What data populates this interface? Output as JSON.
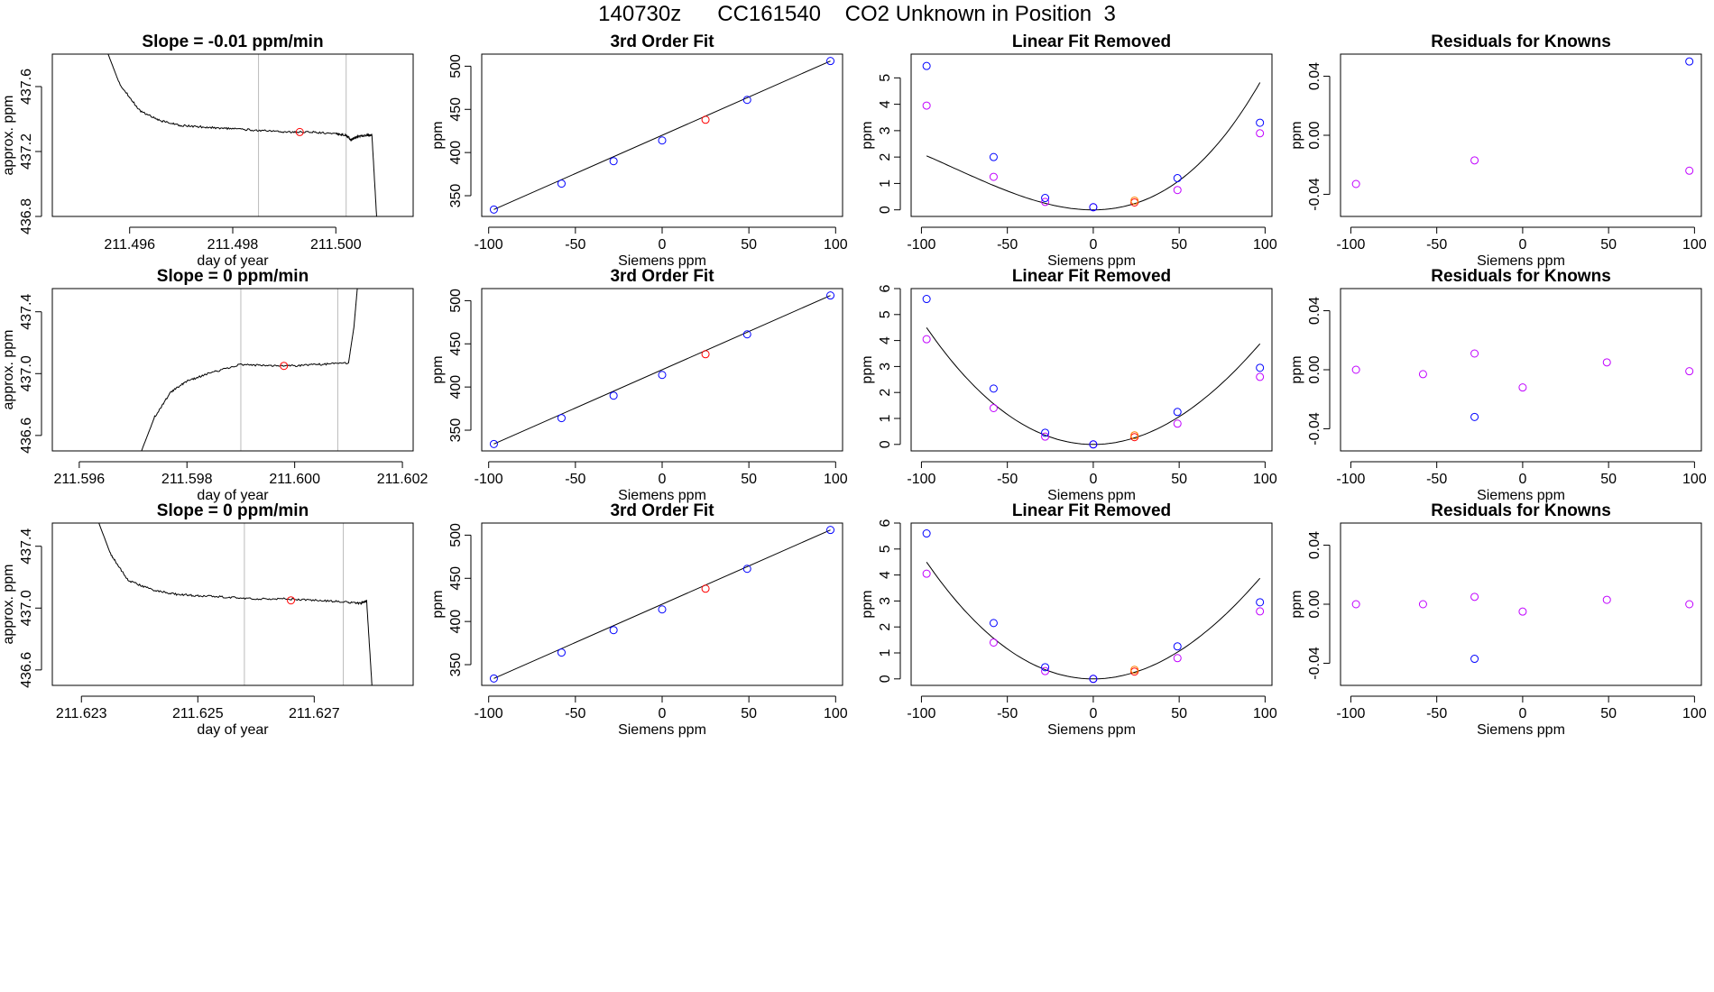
{
  "page": {
    "title": "140730z      CC161540    CO2 Unknown in Position  3"
  },
  "colors": {
    "standard": "#0000ff",
    "unknown": "#ff0000",
    "residual": "#c000ff",
    "line": "#000000",
    "vline": "#bbbbbb"
  },
  "chart_data": [
    {
      "id": "r1-trace",
      "type": "line",
      "title": "Slope =  -0.01  ppm/min",
      "xlabel": "day of year",
      "ylabel": "approx. ppm",
      "xlim": [
        211.4945,
        211.5015
      ],
      "ylim": [
        436.8,
        437.8
      ],
      "xticks": [
        211.496,
        211.498,
        211.5
      ],
      "xtick_labels": [
        "211.496",
        "211.498",
        "211.500"
      ],
      "yticks": [
        436.8,
        437.2,
        437.6
      ],
      "ytick_labels": [
        "436.8",
        "437.2",
        "437.6"
      ],
      "vlines": [
        211.4985,
        211.5002
      ],
      "series": [
        {
          "x": [
            211.4954,
            211.4958,
            211.4962,
            211.4966,
            211.497,
            211.4975,
            211.498,
            211.4985,
            211.499,
            211.4995,
            211.5,
            211.5002,
            211.5003,
            211.5004,
            211.5006,
            211.5007,
            211.5008
          ],
          "y": [
            437.95,
            437.62,
            437.45,
            437.39,
            437.36,
            437.35,
            437.34,
            437.33,
            437.32,
            437.32,
            437.31,
            437.3,
            437.27,
            437.29,
            437.3,
            437.3,
            436.75
          ]
        }
      ],
      "marker": {
        "x": 211.4993,
        "y": 437.32
      }
    },
    {
      "id": "r1-fit",
      "type": "scatter",
      "title": "3rd Order Fit",
      "xlabel": "Siemens ppm",
      "ylabel": "ppm",
      "xlim": [
        -104,
        104
      ],
      "ylim": [
        326,
        514
      ],
      "xticks": [
        -100,
        -50,
        0,
        50,
        100
      ],
      "xtick_labels": [
        "-100",
        "-50",
        "0",
        "50",
        "100"
      ],
      "yticks": [
        350,
        400,
        450,
        500
      ],
      "ytick_labels": [
        "350",
        "400",
        "450",
        "500"
      ],
      "fit_line": {
        "x": [
          -97,
          97
        ],
        "y": [
          334,
          506
        ]
      },
      "standards": {
        "x": [
          -97,
          -58,
          -28,
          0,
          49,
          97
        ],
        "y": [
          334,
          364,
          390,
          414,
          461,
          506
        ]
      },
      "unknown": {
        "x": [
          25
        ],
        "y": [
          438
        ]
      }
    },
    {
      "id": "r1-lin",
      "type": "scatter",
      "title": "Linear Fit Removed",
      "xlabel": "Siemens ppm",
      "ylabel": "ppm",
      "xlim": [
        -106,
        104
      ],
      "ylim": [
        -0.25,
        5.9
      ],
      "xticks": [
        -100,
        -50,
        0,
        50,
        100
      ],
      "xtick_labels": [
        "-100",
        "-50",
        "0",
        "50",
        "100"
      ],
      "yticks": [
        0,
        1,
        2,
        3,
        4,
        5
      ],
      "ytick_labels": [
        "0",
        "1",
        "2",
        "3",
        "4",
        "5"
      ],
      "curve": {
        "a": 0.000365,
        "b": 0.08,
        "c": 0.0002,
        "d": 1.5e-06
      },
      "standards": {
        "x": [
          -97,
          -58,
          -28,
          0,
          49,
          97
        ],
        "y": [
          5.45,
          2.0,
          0.45,
          0.1,
          1.2,
          3.3
        ]
      },
      "residuals": {
        "x": [
          -97,
          -58,
          -28,
          0,
          49,
          97
        ],
        "y": [
          3.95,
          1.25,
          0.3,
          0.1,
          0.75,
          2.9
        ]
      },
      "unknown": {
        "x": [
          24
        ],
        "y": [
          0.28
        ]
      }
    },
    {
      "id": "r1-res",
      "type": "scatter",
      "title": "Residuals for Knowns",
      "xlabel": "Siemens ppm",
      "ylabel": "ppm",
      "xlim": [
        -106,
        104
      ],
      "ylim": [
        -0.055,
        0.055
      ],
      "xticks": [
        -100,
        -50,
        0,
        50,
        100
      ],
      "xtick_labels": [
        "-100",
        "-50",
        "0",
        "50",
        "100"
      ],
      "yticks": [
        -0.04,
        0.0,
        0.04
      ],
      "ytick_labels": [
        "-0.04",
        "0.00",
        "0.04"
      ],
      "residuals": {
        "x": [
          -97,
          -28,
          97
        ],
        "y": [
          -0.033,
          -0.017,
          -0.024
        ]
      },
      "standards": {
        "x": [
          97
        ],
        "y": [
          0.05
        ]
      }
    },
    {
      "id": "r2-trace",
      "type": "line",
      "title": "Slope =  0  ppm/min",
      "xlabel": "day of year",
      "ylabel": "approx. ppm",
      "xlim": [
        211.5955,
        211.6022
      ],
      "ylim": [
        436.5,
        437.55
      ],
      "xticks": [
        211.596,
        211.598,
        211.6,
        211.602
      ],
      "xtick_labels": [
        "211.596",
        "211.598",
        "211.600",
        "211.602"
      ],
      "yticks": [
        436.6,
        437.0,
        437.4
      ],
      "ytick_labels": [
        "436.6",
        "437.0",
        "437.4"
      ],
      "vlines": [
        211.599,
        211.6008
      ],
      "series": [
        {
          "x": [
            211.5971,
            211.5974,
            211.5977,
            211.598,
            211.5984,
            211.599,
            211.5995,
            211.6,
            211.6005,
            211.601,
            211.6011,
            211.6012
          ],
          "y": [
            436.45,
            436.72,
            436.88,
            436.95,
            437.0,
            437.06,
            437.05,
            437.05,
            437.06,
            437.07,
            437.3,
            437.7
          ]
        }
      ],
      "marker": {
        "x": 211.5998,
        "y": 437.05
      }
    },
    {
      "id": "r2-fit",
      "type": "scatter",
      "title": "3rd Order Fit",
      "xlabel": "Siemens ppm",
      "ylabel": "ppm",
      "xlim": [
        -104,
        104
      ],
      "ylim": [
        326,
        514
      ],
      "xticks": [
        -100,
        -50,
        0,
        50,
        100
      ],
      "xtick_labels": [
        "-100",
        "-50",
        "0",
        "50",
        "100"
      ],
      "yticks": [
        350,
        400,
        450,
        500
      ],
      "ytick_labels": [
        "350",
        "400",
        "450",
        "500"
      ],
      "fit_line": {
        "x": [
          -97,
          97
        ],
        "y": [
          334,
          506
        ]
      },
      "standards": {
        "x": [
          -97,
          -58,
          -28,
          0,
          49,
          97
        ],
        "y": [
          334,
          364,
          390,
          414,
          461,
          506
        ]
      },
      "unknown": {
        "x": [
          25
        ],
        "y": [
          438
        ]
      }
    },
    {
      "id": "r2-lin",
      "type": "scatter",
      "title": "Linear Fit Removed",
      "xlabel": "Siemens ppm",
      "ylabel": "ppm",
      "xlim": [
        -106,
        104
      ],
      "ylim": [
        -0.25,
        6.0
      ],
      "xticks": [
        -100,
        -50,
        0,
        50,
        100
      ],
      "xtick_labels": [
        "-100",
        "-50",
        "0",
        "50",
        "100"
      ],
      "yticks": [
        0,
        1,
        2,
        3,
        4,
        5,
        6
      ],
      "ytick_labels": [
        "0",
        "1",
        "2",
        "3",
        "4",
        "5",
        "6"
      ],
      "curve": {
        "a": 0.000445,
        "b": 0.0,
        "c": 0.0,
        "d": -3.4e-07
      },
      "standards": {
        "x": [
          -97,
          -58,
          -28,
          0,
          49,
          97
        ],
        "y": [
          5.6,
          2.15,
          0.45,
          0.0,
          1.25,
          2.95
        ]
      },
      "residuals": {
        "x": [
          -97,
          -58,
          -28,
          0,
          49,
          97
        ],
        "y": [
          4.05,
          1.4,
          0.3,
          0.0,
          0.8,
          2.6
        ]
      },
      "unknown": {
        "x": [
          24
        ],
        "y": [
          0.28
        ]
      }
    },
    {
      "id": "r2-res",
      "type": "scatter",
      "title": "Residuals for Knowns",
      "xlabel": "Siemens ppm",
      "ylabel": "ppm",
      "xlim": [
        -106,
        104
      ],
      "ylim": [
        -0.055,
        0.055
      ],
      "xticks": [
        -100,
        -50,
        0,
        50,
        100
      ],
      "xtick_labels": [
        "-100",
        "-50",
        "0",
        "50",
        "100"
      ],
      "yticks": [
        -0.04,
        0.0,
        0.04
      ],
      "ytick_labels": [
        "-0.04",
        "0.00",
        "0.04"
      ],
      "residuals": {
        "x": [
          -97,
          -58,
          -28,
          0,
          49,
          97
        ],
        "y": [
          0.0,
          -0.003,
          0.011,
          -0.012,
          0.005,
          -0.001
        ]
      },
      "standards": {
        "x": [
          -28
        ],
        "y": [
          -0.032
        ]
      }
    },
    {
      "id": "r3-trace",
      "type": "line",
      "title": "Slope =  0  ppm/min",
      "xlabel": "day of year",
      "ylabel": "approx. ppm",
      "xlim": [
        211.6225,
        211.6287
      ],
      "ylim": [
        436.5,
        437.55
      ],
      "xticks": [
        211.623,
        211.625,
        211.627
      ],
      "xtick_labels": [
        "211.623",
        "211.625",
        "211.627"
      ],
      "yticks": [
        436.6,
        437.0,
        437.4
      ],
      "ytick_labels": [
        "436.6",
        "437.0",
        "437.4"
      ],
      "vlines": [
        211.6258,
        211.6275
      ],
      "series": [
        {
          "x": [
            211.6232,
            211.6235,
            211.6238,
            211.6242,
            211.6246,
            211.625,
            211.6255,
            211.626,
            211.6265,
            211.627,
            211.6275,
            211.6278,
            211.6279,
            211.628
          ],
          "y": [
            437.65,
            437.35,
            437.18,
            437.12,
            437.09,
            437.08,
            437.07,
            437.06,
            437.06,
            437.05,
            437.04,
            437.03,
            437.05,
            436.45
          ]
        }
      ],
      "marker": {
        "x": 211.6266,
        "y": 437.05
      }
    },
    {
      "id": "r3-fit",
      "type": "scatter",
      "title": "3rd Order Fit",
      "xlabel": "Siemens ppm",
      "ylabel": "ppm",
      "xlim": [
        -104,
        104
      ],
      "ylim": [
        326,
        514
      ],
      "xticks": [
        -100,
        -50,
        0,
        50,
        100
      ],
      "xtick_labels": [
        "-100",
        "-50",
        "0",
        "50",
        "100"
      ],
      "yticks": [
        350,
        400,
        450,
        500
      ],
      "ytick_labels": [
        "350",
        "400",
        "450",
        "500"
      ],
      "fit_line": {
        "x": [
          -97,
          97
        ],
        "y": [
          334,
          506
        ]
      },
      "standards": {
        "x": [
          -97,
          -58,
          -28,
          0,
          49,
          97
        ],
        "y": [
          334,
          364,
          390,
          414,
          461,
          506
        ]
      },
      "unknown": {
        "x": [
          25
        ],
        "y": [
          438
        ]
      }
    },
    {
      "id": "r3-lin",
      "type": "scatter",
      "title": "Linear Fit Removed",
      "xlabel": "Siemens ppm",
      "ylabel": "ppm",
      "xlim": [
        -106,
        104
      ],
      "ylim": [
        -0.25,
        6.0
      ],
      "xticks": [
        -100,
        -50,
        0,
        50,
        100
      ],
      "xtick_labels": [
        "-100",
        "-50",
        "0",
        "50",
        "100"
      ],
      "yticks": [
        0,
        1,
        2,
        3,
        4,
        5,
        6
      ],
      "ytick_labels": [
        "0",
        "1",
        "2",
        "3",
        "4",
        "5",
        "6"
      ],
      "curve": {
        "a": 0.000445,
        "b": 0.0,
        "c": 0.0,
        "d": -3.4e-07
      },
      "standards": {
        "x": [
          -97,
          -58,
          -28,
          0,
          49,
          97
        ],
        "y": [
          5.6,
          2.15,
          0.45,
          0.0,
          1.25,
          2.95
        ]
      },
      "residuals": {
        "x": [
          -97,
          -58,
          -28,
          0,
          49,
          97
        ],
        "y": [
          4.05,
          1.4,
          0.3,
          0.0,
          0.8,
          2.6
        ]
      },
      "unknown": {
        "x": [
          24
        ],
        "y": [
          0.28
        ]
      }
    },
    {
      "id": "r3-res",
      "type": "scatter",
      "title": "Residuals for Knowns",
      "xlabel": "Siemens ppm",
      "ylabel": "ppm",
      "xlim": [
        -106,
        104
      ],
      "ylim": [
        -0.055,
        0.055
      ],
      "xticks": [
        -100,
        -50,
        0,
        50,
        100
      ],
      "xtick_labels": [
        "-100",
        "-50",
        "0",
        "50",
        "100"
      ],
      "yticks": [
        -0.04,
        0.0,
        0.04
      ],
      "ytick_labels": [
        "-0.04",
        "0.00",
        "0.04"
      ],
      "residuals": {
        "x": [
          -97,
          -58,
          -28,
          0,
          49,
          97
        ],
        "y": [
          0.0,
          0.0,
          0.005,
          -0.005,
          0.003,
          0.0
        ]
      },
      "standards": {
        "x": [
          -28
        ],
        "y": [
          -0.037
        ]
      }
    }
  ]
}
